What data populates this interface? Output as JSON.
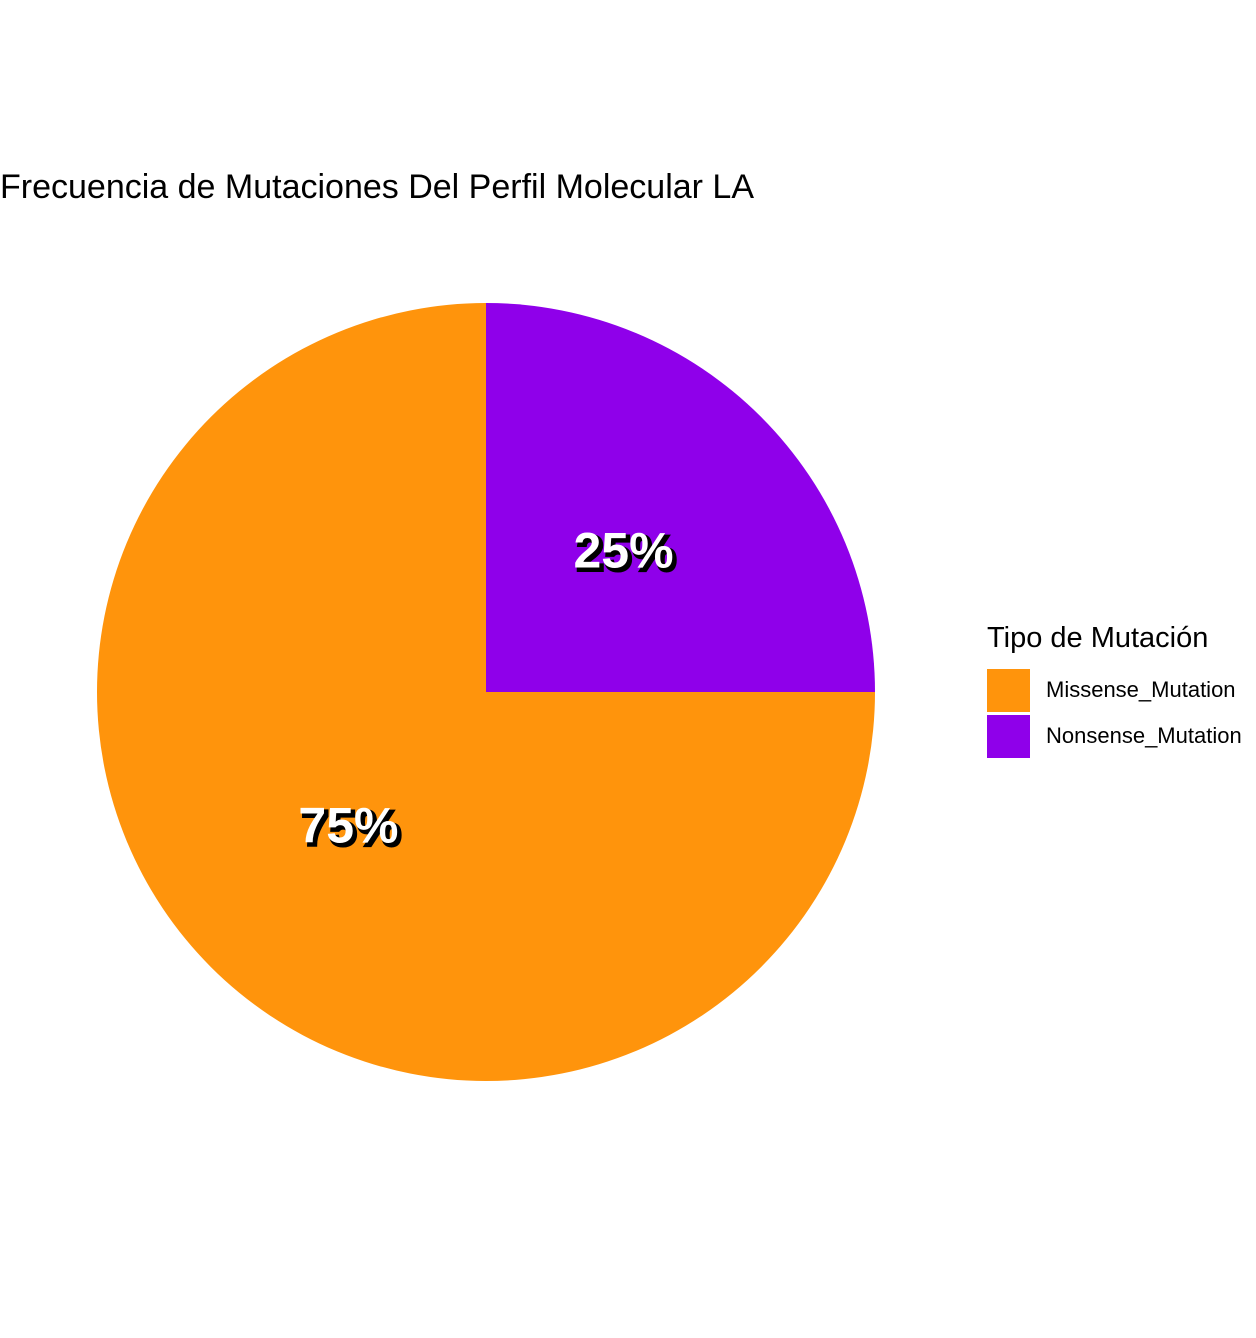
{
  "chart_data": {
    "type": "pie",
    "title": "Frecuencia de Mutaciones Del Perfil Molecular LA",
    "legend_title": "Tipo de Mutación",
    "legend_position": "right",
    "categories": [
      "Missense_Mutation",
      "Nonsense_Mutation"
    ],
    "values": [
      75,
      25
    ],
    "labels": [
      "75%",
      "25%"
    ],
    "colors": [
      "#FF940C",
      "#8F00EA"
    ]
  }
}
